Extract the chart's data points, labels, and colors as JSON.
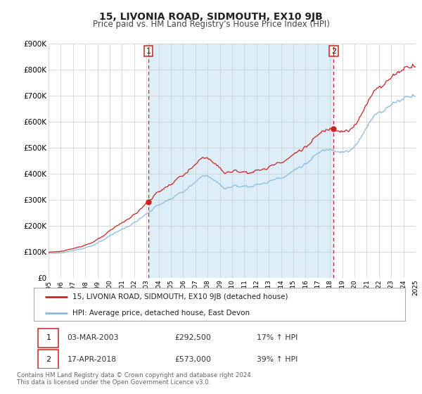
{
  "title": "15, LIVONIA ROAD, SIDMOUTH, EX10 9JB",
  "subtitle": "Price paid vs. HM Land Registry's House Price Index (HPI)",
  "ylim": [
    0,
    900000
  ],
  "yticks": [
    0,
    100000,
    200000,
    300000,
    400000,
    500000,
    600000,
    700000,
    800000,
    900000
  ],
  "ytick_labels": [
    "£0",
    "£100K",
    "£200K",
    "£300K",
    "£400K",
    "£500K",
    "£600K",
    "£700K",
    "£800K",
    "£900K"
  ],
  "x_start_year": 1995,
  "x_end_year": 2025,
  "sale1_date": "03-MAR-2003",
  "sale1_price": 292500,
  "sale1_pct": "17%",
  "sale2_date": "17-APR-2018",
  "sale2_price": 573000,
  "sale2_pct": "39%",
  "sale1_x": 2003.17,
  "sale2_x": 2018.29,
  "legend_line1": "15, LIVONIA ROAD, SIDMOUTH, EX10 9JB (detached house)",
  "legend_line2": "HPI: Average price, detached house, East Devon",
  "footer1": "Contains HM Land Registry data © Crown copyright and database right 2024.",
  "footer2": "This data is licensed under the Open Government Licence v3.0.",
  "property_color": "#cc2222",
  "hpi_color": "#88bbdd",
  "highlight_color": "#ddeef8",
  "grid_color": "#cccccc",
  "title_fontsize": 10,
  "subtitle_fontsize": 8.5,
  "axis_fontsize": 7.5
}
